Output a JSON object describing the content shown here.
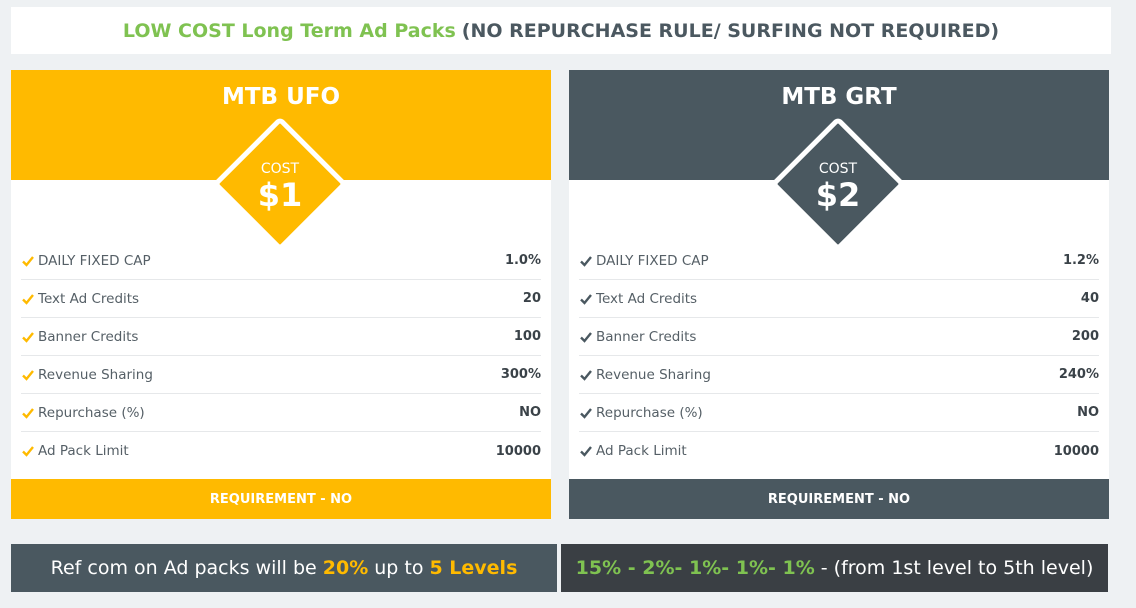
{
  "header": {
    "green_text": "LOW COST Long Term Ad Packs",
    "rest_text": "(NO REPURCHASE RULE/ SURFING NOT REQUIRED)"
  },
  "colors": {
    "yellow": "#ffba00",
    "slate": "#4a5860",
    "green": "#7fc251",
    "dark": "#3a3f44"
  },
  "cards": [
    {
      "title": "MTB UFO",
      "cost_label": "COST",
      "cost_value": "$1",
      "rows": [
        {
          "label": "DAILY FIXED CAP",
          "value": "1.0%"
        },
        {
          "label": "Text Ad Credits",
          "value": "20"
        },
        {
          "label": "Banner Credits",
          "value": "100"
        },
        {
          "label": "Revenue Sharing",
          "value": "300%"
        },
        {
          "label": "Repurchase (%)",
          "value": "NO"
        },
        {
          "label": "Ad Pack Limit",
          "value": "10000"
        }
      ],
      "footer": "REQUIREMENT - NO"
    },
    {
      "title": "MTB GRT",
      "cost_label": "COST",
      "cost_value": "$2",
      "rows": [
        {
          "label": "DAILY FIXED CAP",
          "value": "1.2%"
        },
        {
          "label": "Text Ad Credits",
          "value": "40"
        },
        {
          "label": "Banner Credits",
          "value": "200"
        },
        {
          "label": "Revenue Sharing",
          "value": "240%"
        },
        {
          "label": "Repurchase (%)",
          "value": "NO"
        },
        {
          "label": "Ad Pack Limit",
          "value": "10000"
        }
      ],
      "footer": "REQUIREMENT - NO"
    }
  ],
  "bottom_left": {
    "prefix": "Ref com on Ad packs will be",
    "percent": "20%",
    "middle": "up to",
    "levels": "5 Levels"
  },
  "bottom_right": {
    "percents": "15% - 2%- 1%- 1%- 1%",
    "suffix": "- (from 1st level to 5th level)"
  }
}
